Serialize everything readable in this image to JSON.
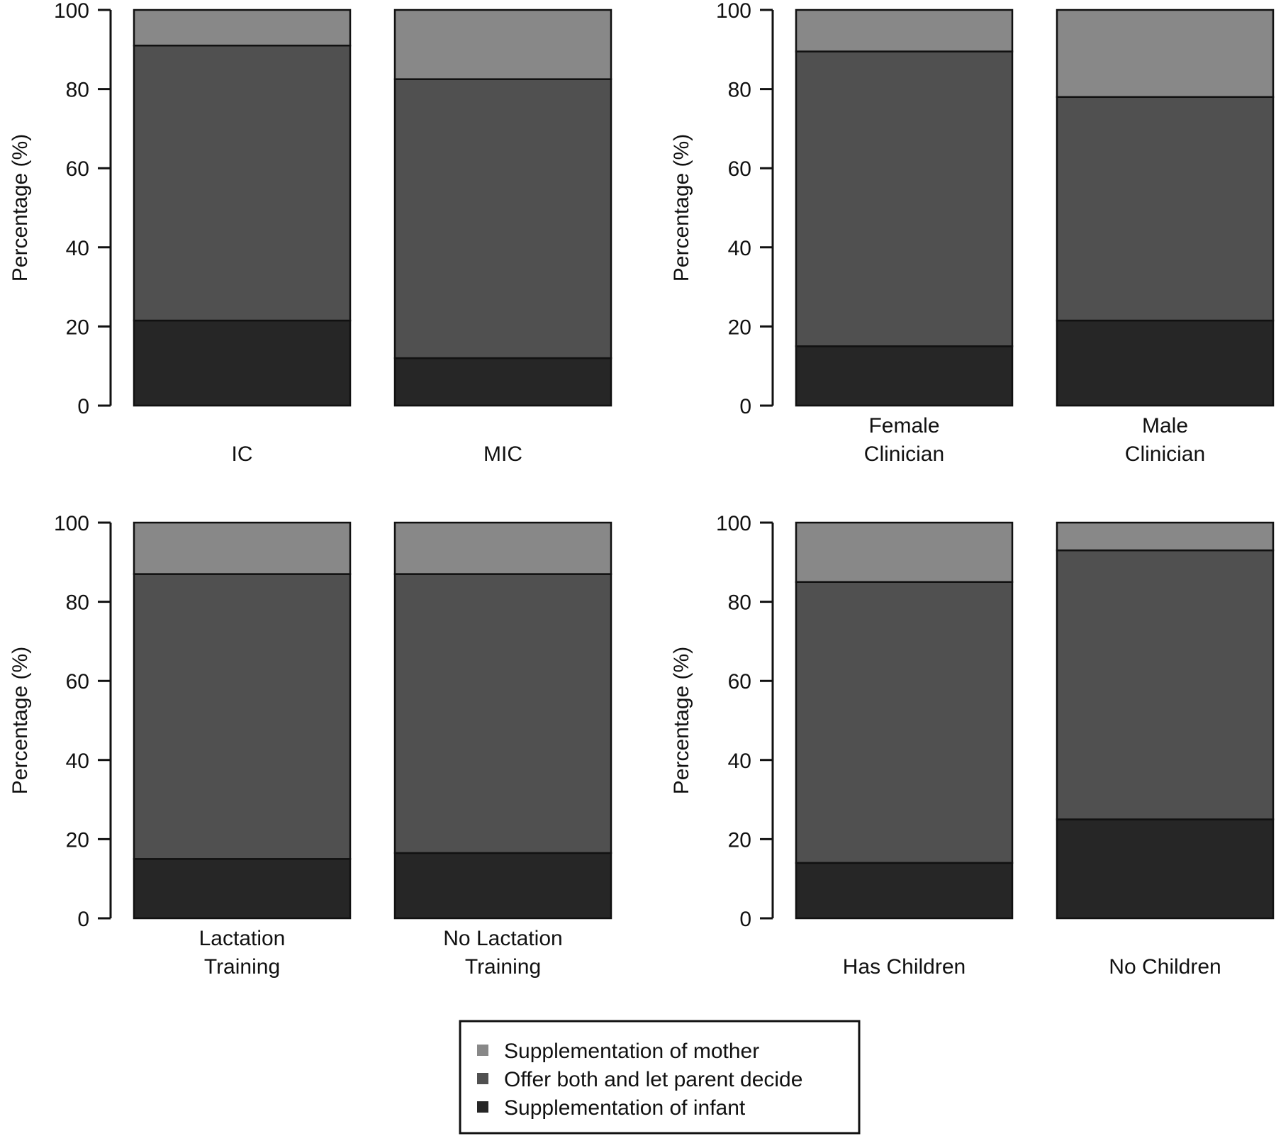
{
  "chart_data": [
    {
      "type": "bar",
      "stacked": true,
      "categories": [
        [
          "IC"
        ],
        [
          "MIC"
        ]
      ],
      "ylabel": "Percentage (%)",
      "ylim": [
        0,
        100
      ],
      "yticks": [
        "0",
        "20",
        "40",
        "60",
        "80",
        "100"
      ],
      "series": [
        {
          "key": "infant",
          "values": [
            21.5,
            12
          ]
        },
        {
          "key": "both",
          "values": [
            69.5,
            70.5
          ]
        },
        {
          "key": "mother",
          "values": [
            9,
            17.5
          ]
        }
      ]
    },
    {
      "type": "bar",
      "stacked": true,
      "categories": [
        [
          "Female",
          "Clinician"
        ],
        [
          "Male",
          "Clinician"
        ]
      ],
      "ylabel": "Percentage (%)",
      "ylim": [
        0,
        100
      ],
      "yticks": [
        "0",
        "20",
        "40",
        "60",
        "80",
        "100"
      ],
      "series": [
        {
          "key": "infant",
          "values": [
            15,
            21.5
          ]
        },
        {
          "key": "both",
          "values": [
            74.5,
            56.5
          ]
        },
        {
          "key": "mother",
          "values": [
            10.5,
            22
          ]
        }
      ]
    },
    {
      "type": "bar",
      "stacked": true,
      "categories": [
        [
          "Lactation",
          "Training"
        ],
        [
          "No Lactation",
          "Training"
        ]
      ],
      "ylabel": "Percentage (%)",
      "ylim": [
        0,
        100
      ],
      "yticks": [
        "0",
        "20",
        "40",
        "60",
        "80",
        "100"
      ],
      "series": [
        {
          "key": "infant",
          "values": [
            15,
            16.5
          ]
        },
        {
          "key": "both",
          "values": [
            72,
            70.5
          ]
        },
        {
          "key": "mother",
          "values": [
            13,
            13
          ]
        }
      ]
    },
    {
      "type": "bar",
      "stacked": true,
      "categories": [
        [
          "Has Children"
        ],
        [
          "No Children"
        ]
      ],
      "ylabel": "Percentage (%)",
      "ylim": [
        0,
        100
      ],
      "yticks": [
        "0",
        "20",
        "40",
        "60",
        "80",
        "100"
      ],
      "series": [
        {
          "key": "infant",
          "values": [
            14,
            25
          ]
        },
        {
          "key": "both",
          "values": [
            71,
            68
          ]
        },
        {
          "key": "mother",
          "values": [
            15,
            7
          ]
        }
      ]
    }
  ],
  "legend": {
    "placement": "bottom-center",
    "items": [
      {
        "key": "mother",
        "label": "Supplementation of mother",
        "color": "#888888"
      },
      {
        "key": "both",
        "label": "Offer both and let parent decide",
        "color": "#505050"
      },
      {
        "key": "infant",
        "label": "Supplementation of infant",
        "color": "#262626"
      }
    ]
  }
}
